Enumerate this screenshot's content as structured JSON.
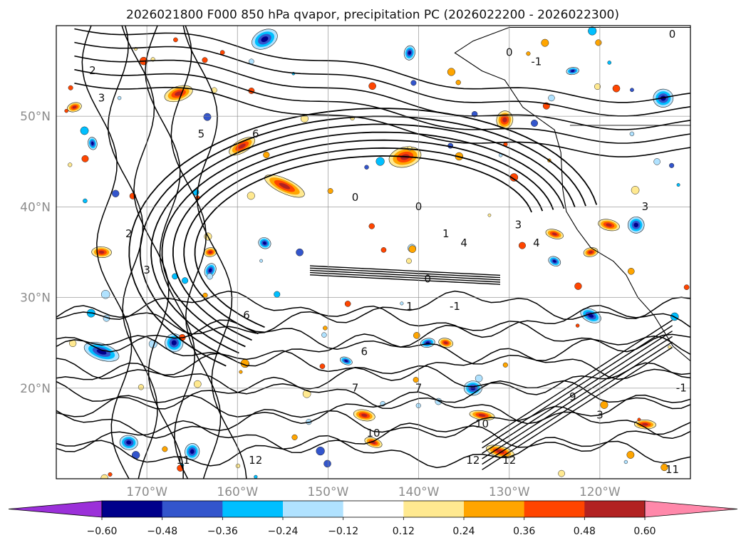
{
  "chart_data": {
    "type": "map-contour",
    "title": "2026021800 F000 850 hPa qvapor, precipitation PC (2026022200 - 2026022300)",
    "x_ticks": [
      "170°W",
      "160°W",
      "150°W",
      "140°W",
      "130°W",
      "120°W"
    ],
    "y_ticks": [
      "50°N",
      "40°N",
      "30°N",
      "20°N"
    ],
    "lon_values": [
      -170,
      -160,
      -150,
      -140,
      -130,
      -120
    ],
    "lat_values": [
      50,
      40,
      30,
      20
    ],
    "lon_range": [
      -180,
      -110
    ],
    "lat_range": [
      10,
      60
    ],
    "grid": true,
    "colorbar": {
      "orientation": "horizontal",
      "extend": "both",
      "levels": [
        -0.6,
        -0.48,
        -0.36,
        -0.24,
        -0.12,
        0.12,
        0.24,
        0.36,
        0.48,
        0.6
      ],
      "tick_labels": [
        "−0.60",
        "−0.48",
        "−0.36",
        "−0.24",
        "−0.12",
        "0.12",
        "0.24",
        "0.36",
        "0.48",
        "0.60"
      ],
      "colors": [
        "#9b30d9",
        "#00008b",
        "#3355cc",
        "#00bfff",
        "#b0e2ff",
        "#ffffff",
        "#ffe990",
        "#ffa500",
        "#ff4500",
        "#b22222",
        "#ff88aa"
      ]
    },
    "contour_labels": [
      {
        "text": "2",
        "lon": -176,
        "lat": 55
      },
      {
        "text": "3",
        "lon": -175,
        "lat": 52
      },
      {
        "text": "5",
        "lon": -164,
        "lat": 48
      },
      {
        "text": "6",
        "lon": -158,
        "lat": 48
      },
      {
        "text": "3",
        "lon": -170,
        "lat": 33
      },
      {
        "text": "2",
        "lon": -172,
        "lat": 37
      },
      {
        "text": "0",
        "lon": -147,
        "lat": 41
      },
      {
        "text": "0",
        "lon": -140,
        "lat": 40
      },
      {
        "text": "1",
        "lon": -137,
        "lat": 37
      },
      {
        "text": "4",
        "lon": -135,
        "lat": 36
      },
      {
        "text": "3",
        "lon": -129,
        "lat": 38
      },
      {
        "text": "4",
        "lon": -127,
        "lat": 36
      },
      {
        "text": "0",
        "lon": -139,
        "lat": 32
      },
      {
        "text": "1",
        "lon": -141,
        "lat": 29
      },
      {
        "text": "-1",
        "lon": -136,
        "lat": 29
      },
      {
        "text": "0",
        "lon": -130,
        "lat": 57
      },
      {
        "text": "-1",
        "lon": -127,
        "lat": 56
      },
      {
        "text": "6",
        "lon": -159,
        "lat": 28
      },
      {
        "text": "6",
        "lon": -146,
        "lat": 24
      },
      {
        "text": "7",
        "lon": -147,
        "lat": 20
      },
      {
        "text": "7",
        "lon": -140,
        "lat": 20
      },
      {
        "text": "9",
        "lon": -123,
        "lat": 19
      },
      {
        "text": "3",
        "lon": -120,
        "lat": 17
      },
      {
        "text": "10",
        "lon": -133,
        "lat": 16
      },
      {
        "text": "10",
        "lon": -145,
        "lat": 15
      },
      {
        "text": "11",
        "lon": -166,
        "lat": 12
      },
      {
        "text": "12",
        "lon": -158,
        "lat": 12
      },
      {
        "text": "12",
        "lon": -134,
        "lat": 12
      },
      {
        "text": "12",
        "lon": -130,
        "lat": 12
      },
      {
        "text": "11",
        "lon": -112,
        "lat": 11
      },
      {
        "text": "-1",
        "lon": -111,
        "lat": 20
      },
      {
        "text": "0",
        "lon": -112,
        "lat": 59
      },
      {
        "text": "3",
        "lon": -115,
        "lat": 40
      }
    ]
  }
}
